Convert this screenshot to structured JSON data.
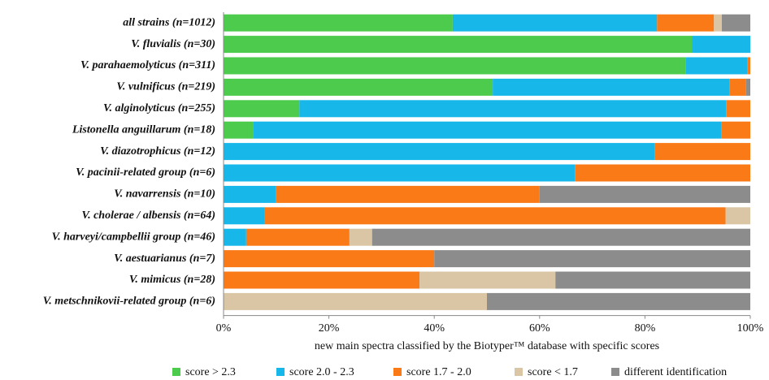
{
  "chart_data": {
    "type": "stacked-barh",
    "xlabel": "new main spectra classified by the Biotyper™ database with specific scores",
    "categories": [
      "all strains (n=1012)",
      "V. fluvialis (n=30)",
      "V. parahaemolyticus (n=311)",
      "V. vulnificus (n=219)",
      "V. alginolyticus (n=255)",
      "Listonella anguillarum (n=18)",
      "V. diazotrophicus (n=12)",
      "V. pacinii-related group  (n=6)",
      "V. navarrensis (n=10)",
      "V. cholerae / albensis (n=64)",
      "V. harveyi/campbellii group (n=46)",
      "V. aestuarianus (n=7)",
      "V. mimicus (n=28)",
      "V. metschnikovii-related group (n=6)"
    ],
    "series": [
      {
        "name": "score > 2.3",
        "color": "#4ccb4c",
        "values": [
          43.5,
          88.9,
          87.7,
          51.1,
          14.4,
          5.6,
          0,
          0,
          0,
          0,
          0,
          0,
          0,
          0
        ]
      },
      {
        "name": "score 2.0 - 2.3",
        "color": "#18b7ea",
        "values": [
          38.8,
          11.1,
          11.7,
          45,
          81,
          88.9,
          81.8,
          66.7,
          10,
          7.8,
          4.3,
          0,
          0,
          0
        ]
      },
      {
        "name": "score 1.7 - 2.0",
        "color": "#fa7a18",
        "values": [
          10.8,
          0,
          0.6,
          3.1,
          4.6,
          5.5,
          18.2,
          33.3,
          50,
          87.5,
          19.6,
          40,
          37.2,
          0
        ]
      },
      {
        "name": "score < 1.7",
        "color": "#dac5a4",
        "values": [
          1.5,
          0,
          0,
          0,
          0,
          0,
          0,
          0,
          0,
          4.7,
          4.3,
          0,
          25.8,
          50
        ]
      },
      {
        "name": "different identification",
        "color": "#8c8c8c",
        "values": [
          5.4,
          0,
          0,
          0.8,
          0,
          0,
          0,
          0,
          40,
          0,
          71.8,
          60,
          37,
          50
        ]
      }
    ],
    "xlim": [
      0,
      100
    ],
    "xticks": [
      {
        "value": 0,
        "label": "0%"
      },
      {
        "value": 20,
        "label": "20%"
      },
      {
        "value": 40,
        "label": "40%"
      },
      {
        "value": 60,
        "label": "60%"
      },
      {
        "value": 80,
        "label": "80%"
      },
      {
        "value": 100,
        "label": "100%"
      }
    ]
  }
}
